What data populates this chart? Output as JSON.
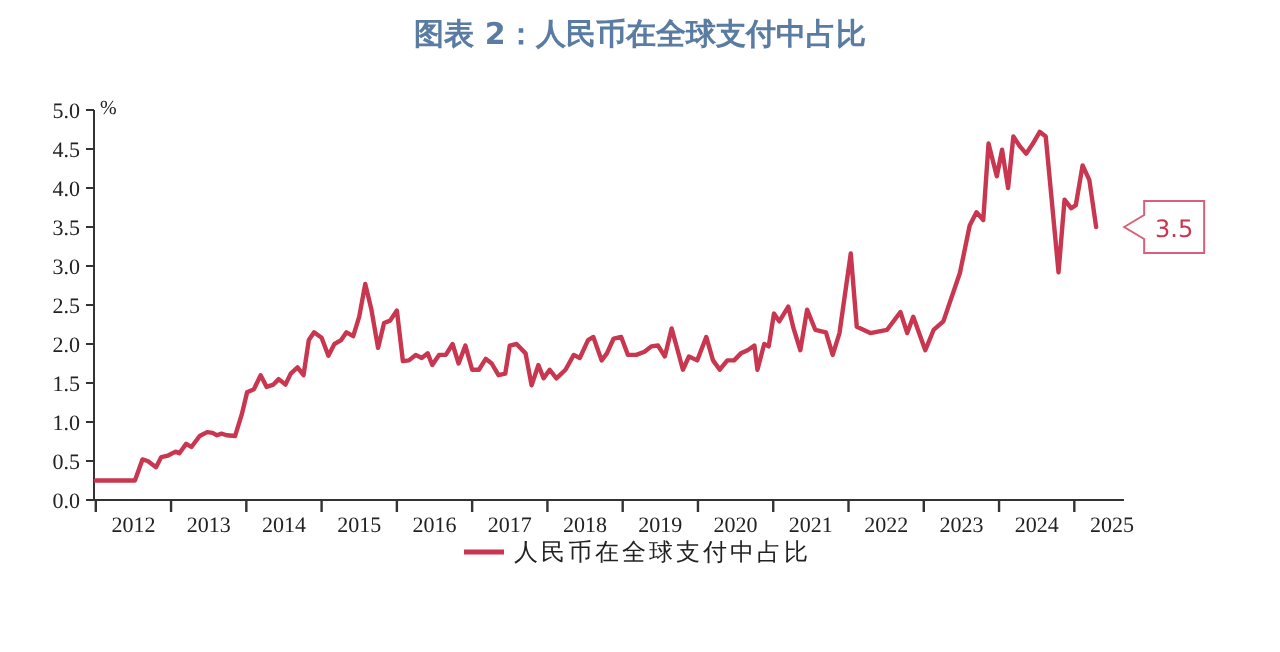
{
  "chart_data": {
    "type": "line",
    "title": "图表 2：人民币在全球支付中占比",
    "ylabel": "%",
    "x": [
      2012.0,
      2012.52,
      2012.62,
      2012.69,
      2012.8,
      2012.87,
      2012.96,
      2013.06,
      2013.11,
      2013.2,
      2013.27,
      2013.38,
      2013.48,
      2013.55,
      2013.61,
      2013.67,
      2013.74,
      2013.85,
      2013.94,
      2014.01,
      2014.1,
      2014.19,
      2014.27,
      2014.36,
      2014.43,
      2014.52,
      2014.59,
      2014.68,
      2014.76,
      2014.83,
      2014.9,
      2015.0,
      2015.09,
      2015.17,
      2015.26,
      2015.33,
      2015.42,
      2015.5,
      2015.58,
      2015.66,
      2015.75,
      2015.83,
      2015.91,
      2016.0,
      2016.08,
      2016.16,
      2016.25,
      2016.33,
      2016.41,
      2016.47,
      2016.56,
      2016.65,
      2016.74,
      2016.82,
      2016.91,
      2017.0,
      2017.09,
      2017.18,
      2017.26,
      2017.35,
      2017.44,
      2017.5,
      2017.59,
      2017.71,
      2017.79,
      2017.88,
      2017.95,
      2018.03,
      2018.12,
      2018.24,
      2018.35,
      2018.43,
      2018.54,
      2018.61,
      2018.72,
      2018.79,
      2018.88,
      2018.98,
      2019.07,
      2019.18,
      2019.29,
      2019.38,
      2019.47,
      2019.56,
      2019.65,
      2019.73,
      2019.8,
      2019.88,
      2019.99,
      2020.11,
      2020.2,
      2020.29,
      2020.39,
      2020.48,
      2020.57,
      2020.66,
      2020.75,
      2020.79,
      2020.88,
      2020.94,
      2021.01,
      2021.08,
      2021.2,
      2021.27,
      2021.36,
      2021.45,
      2021.56,
      2021.7,
      2021.79,
      2021.88,
      2022.03,
      2022.11,
      2022.29,
      2022.51,
      2022.69,
      2022.78,
      2022.86,
      2023.02,
      2023.13,
      2023.26,
      2023.48,
      2023.61,
      2023.7,
      2023.79,
      2023.86,
      2023.97,
      2024.04,
      2024.12,
      2024.19,
      2024.28,
      2024.36,
      2024.45,
      2024.54,
      2024.62,
      2024.79,
      2024.87,
      2024.96,
      2025.02,
      2025.11,
      2025.2,
      2025.29
    ],
    "series": [
      {
        "name": "人民币在全球支付中占比",
        "color": "#c8374f",
        "values": [
          0.25,
          0.25,
          0.52,
          0.5,
          0.42,
          0.55,
          0.57,
          0.62,
          0.6,
          0.72,
          0.68,
          0.82,
          0.87,
          0.86,
          0.83,
          0.85,
          0.83,
          0.82,
          1.1,
          1.38,
          1.42,
          1.6,
          1.45,
          1.48,
          1.55,
          1.48,
          1.62,
          1.7,
          1.6,
          2.05,
          2.15,
          2.08,
          1.85,
          2.0,
          2.05,
          2.15,
          2.1,
          2.35,
          2.77,
          2.45,
          1.95,
          2.27,
          2.3,
          2.43,
          1.78,
          1.79,
          1.86,
          1.82,
          1.88,
          1.73,
          1.86,
          1.86,
          2.0,
          1.75,
          1.98,
          1.67,
          1.67,
          1.81,
          1.75,
          1.6,
          1.62,
          1.98,
          2.0,
          1.88,
          1.47,
          1.73,
          1.56,
          1.67,
          1.56,
          1.67,
          1.86,
          1.82,
          2.05,
          2.09,
          1.79,
          1.88,
          2.07,
          2.09,
          1.86,
          1.86,
          1.9,
          1.97,
          1.98,
          1.84,
          2.2,
          1.92,
          1.67,
          1.84,
          1.79,
          2.09,
          1.79,
          1.67,
          1.79,
          1.79,
          1.88,
          1.92,
          1.98,
          1.67,
          2.0,
          1.97,
          2.39,
          2.29,
          2.48,
          2.2,
          1.92,
          2.44,
          2.18,
          2.15,
          1.86,
          2.14,
          3.16,
          2.22,
          2.14,
          2.18,
          2.41,
          2.14,
          2.35,
          1.92,
          2.18,
          2.29,
          2.91,
          3.52,
          3.69,
          3.59,
          4.57,
          4.15,
          4.49,
          4.0,
          4.66,
          4.53,
          4.44,
          4.57,
          4.72,
          4.66,
          2.92,
          3.85,
          3.74,
          3.78,
          4.29,
          4.1,
          3.5
        ]
      }
    ],
    "xlim": [
      2011.87,
      2025.66
    ],
    "ylim": [
      0,
      5
    ],
    "xticks": [
      {
        "value": 2012,
        "label": null
      },
      {
        "value": 2012.5,
        "label": "2012"
      },
      {
        "value": 2013,
        "label": null
      },
      {
        "value": 2013.5,
        "label": "2013"
      },
      {
        "value": 2014,
        "label": null
      },
      {
        "value": 2014.5,
        "label": "2014"
      },
      {
        "value": 2015,
        "label": null
      },
      {
        "value": 2015.5,
        "label": "2015"
      },
      {
        "value": 2016,
        "label": null
      },
      {
        "value": 2016.5,
        "label": "2016"
      },
      {
        "value": 2017,
        "label": null
      },
      {
        "value": 2017.5,
        "label": "2017"
      },
      {
        "value": 2018,
        "label": null
      },
      {
        "value": 2018.5,
        "label": "2018"
      },
      {
        "value": 2019,
        "label": null
      },
      {
        "value": 2019.5,
        "label": "2019"
      },
      {
        "value": 2020,
        "label": null
      },
      {
        "value": 2020.5,
        "label": "2020"
      },
      {
        "value": 2021,
        "label": null
      },
      {
        "value": 2021.5,
        "label": "2021"
      },
      {
        "value": 2022,
        "label": null
      },
      {
        "value": 2022.5,
        "label": "2022"
      },
      {
        "value": 2023,
        "label": null
      },
      {
        "value": 2023.5,
        "label": "2023"
      },
      {
        "value": 2024,
        "label": null
      },
      {
        "value": 2024.5,
        "label": "2024"
      },
      {
        "value": 2025,
        "label": null
      },
      {
        "value": 2025.5,
        "label": "2025"
      }
    ],
    "yticks": [
      {
        "value": 0,
        "label": "0.0"
      },
      {
        "value": 0.5,
        "label": "0.5"
      },
      {
        "value": 1,
        "label": "1.0"
      },
      {
        "value": 1.5,
        "label": "1.5"
      },
      {
        "value": 2,
        "label": "2.0"
      },
      {
        "value": 2.5,
        "label": "2.5"
      },
      {
        "value": 3,
        "label": "3.0"
      },
      {
        "value": 3.5,
        "label": "3.5"
      },
      {
        "value": 4,
        "label": "4.0"
      },
      {
        "value": 4.5,
        "label": "4.5"
      },
      {
        "value": 5,
        "label": "5.0"
      }
    ],
    "legend": "bottom",
    "annotations": [
      {
        "text": "3.5",
        "x": 2025.29,
        "y": 3.5
      }
    ]
  }
}
